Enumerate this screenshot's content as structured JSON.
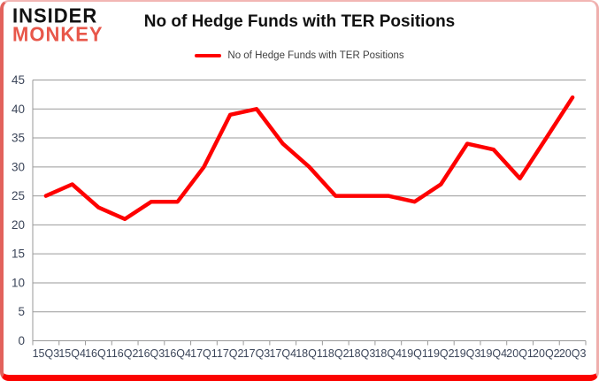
{
  "logo": {
    "line1": "INSIDER",
    "line2": "MONKEY"
  },
  "header": {
    "title": "No of Hedge Funds with TER Positions"
  },
  "legend": {
    "label": "No of Hedge Funds with TER Positions",
    "marker_color": "#fe0000"
  },
  "chart_data": {
    "type": "line",
    "title": "No of Hedge Funds with TER Positions",
    "categories": [
      "15Q3",
      "15Q4",
      "16Q1",
      "16Q2",
      "16Q3",
      "16Q4",
      "17Q1",
      "17Q2",
      "17Q3",
      "17Q4",
      "18Q1",
      "18Q2",
      "18Q3",
      "18Q4",
      "19Q1",
      "19Q2",
      "19Q3",
      "19Q4",
      "20Q1",
      "20Q2",
      "20Q3"
    ],
    "series": [
      {
        "name": "No of Hedge Funds with TER Positions",
        "values": [
          25,
          27,
          23,
          21,
          24,
          24,
          30,
          39,
          40,
          34,
          30,
          25,
          25,
          25,
          24,
          27,
          34,
          33,
          28,
          35,
          42
        ]
      }
    ],
    "xlabel": "",
    "ylabel": "",
    "ylim": [
      0,
      45
    ],
    "yticks": [
      0,
      5,
      10,
      15,
      20,
      25,
      30,
      35,
      40,
      45
    ],
    "grid": true,
    "legend_position": "top",
    "line_color": "#fe0000",
    "gridline_color": "#9a9a9a",
    "axis_label_color": "#3b4559"
  },
  "colors": {
    "accent_red": "#fe0000",
    "logo_red": "#e8574a",
    "frame_bottom_red": "#fb0300",
    "title_black": "#111111"
  }
}
